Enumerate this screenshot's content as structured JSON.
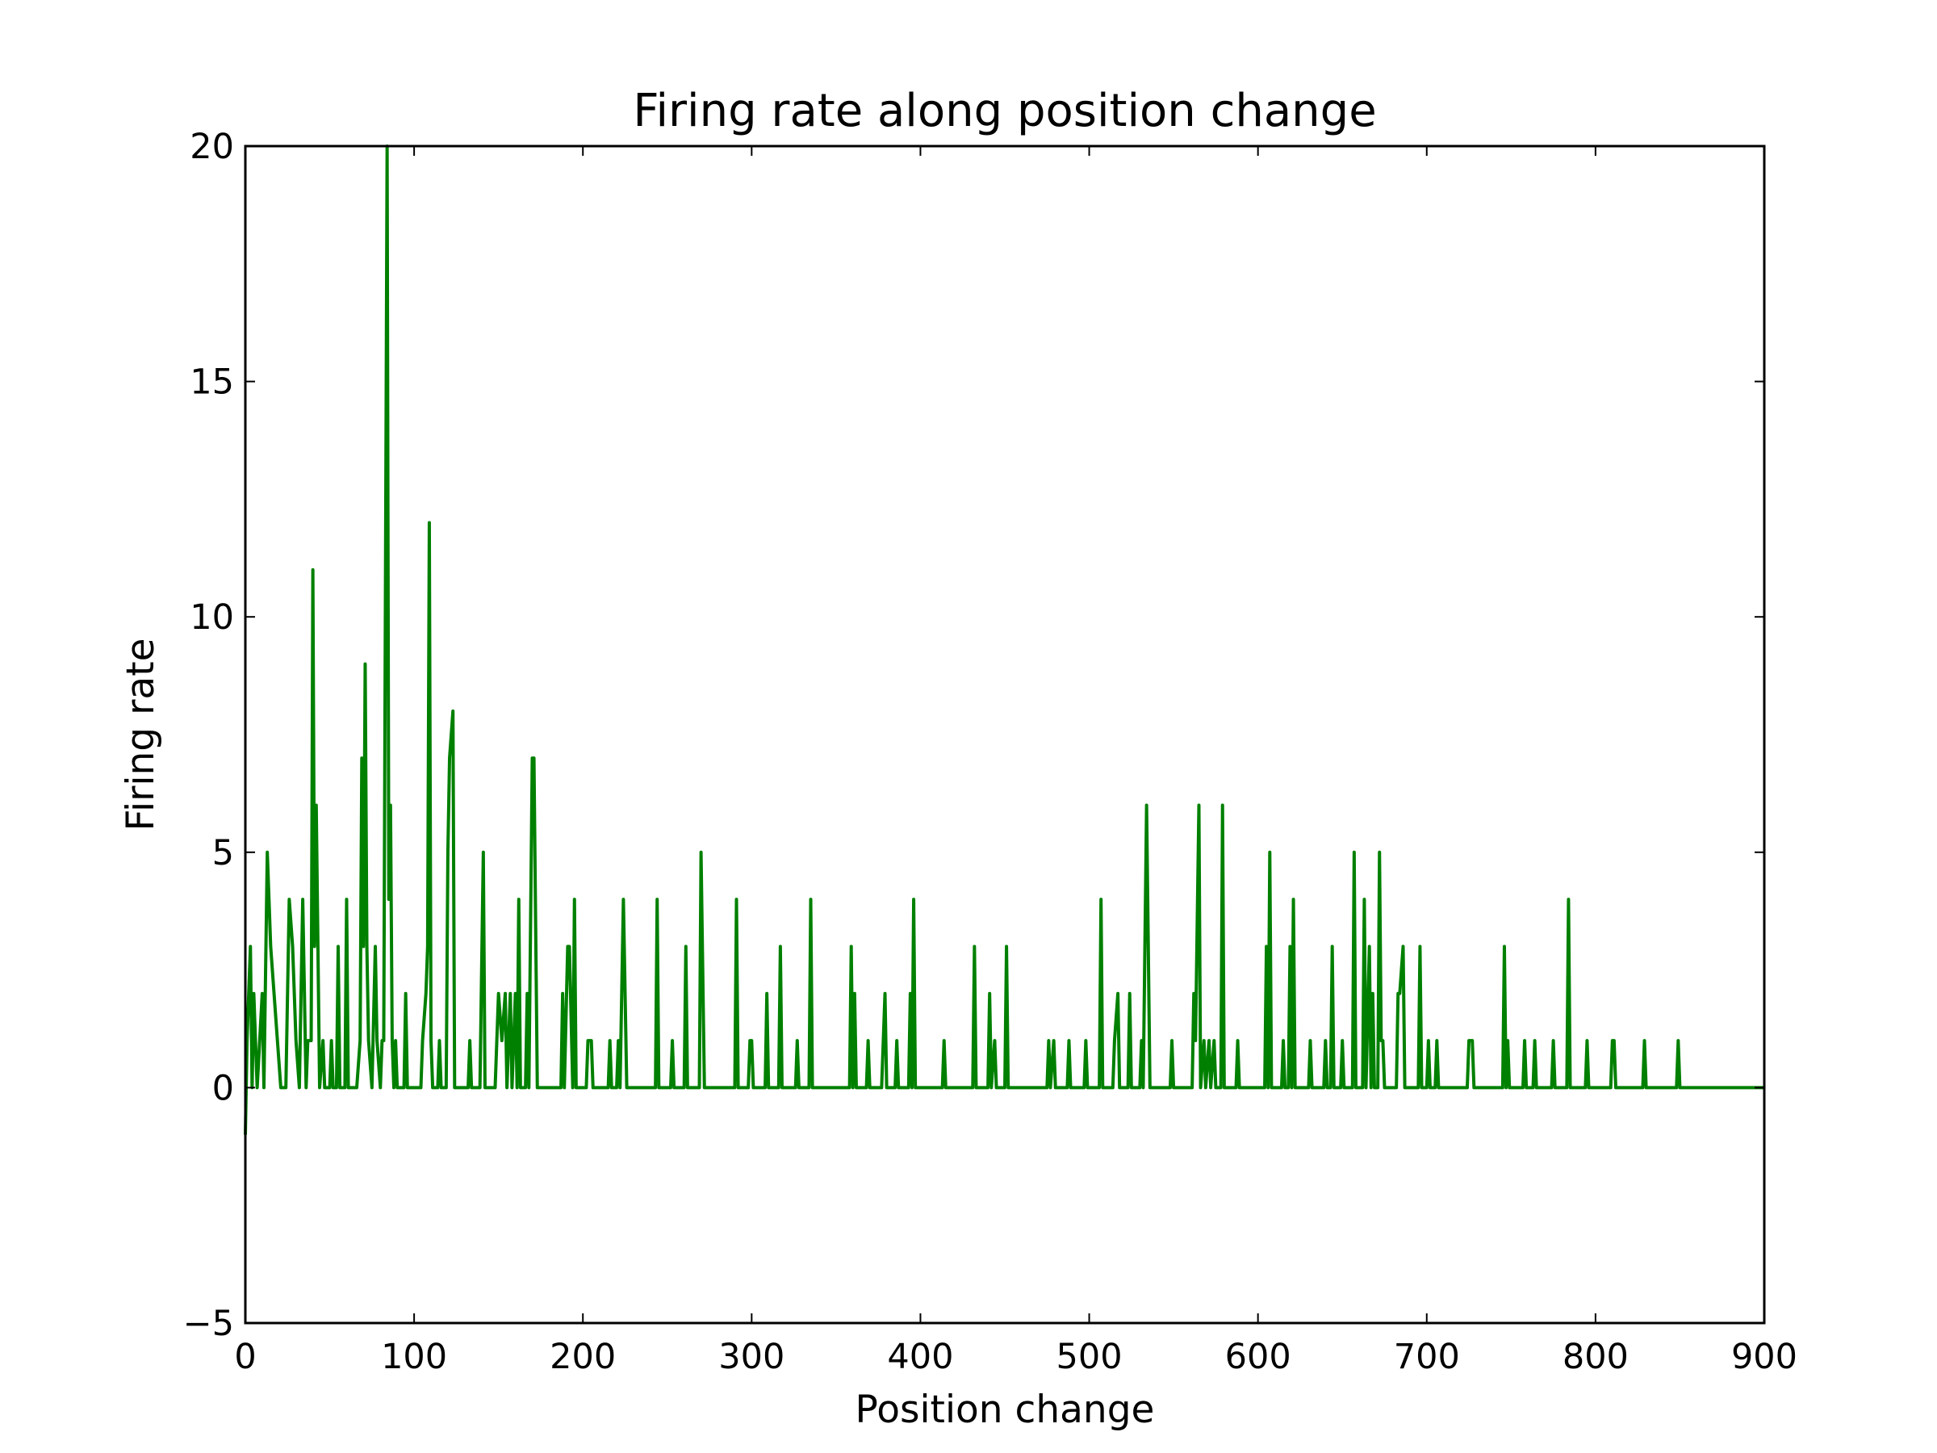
{
  "chart_data": {
    "type": "line",
    "title": "Firing rate along position change",
    "x_label": "Position change",
    "y_label": "Firing rate",
    "color": "#008000",
    "xlim": [
      0,
      900
    ],
    "ylim": [
      -5,
      20
    ],
    "xticks": [
      0,
      100,
      200,
      300,
      400,
      500,
      600,
      700,
      800,
      900
    ],
    "yticks": [
      {
        "value": -5,
        "label": "−5"
      },
      0,
      5,
      10,
      15,
      20
    ],
    "x": [
      0,
      1,
      3,
      4,
      5,
      7,
      10,
      11,
      13,
      15,
      17,
      19,
      21,
      24,
      26,
      28,
      30,
      32,
      34,
      36,
      37,
      39,
      40,
      41,
      42,
      44,
      46,
      47,
      50,
      51,
      52,
      54,
      55,
      56,
      59,
      60,
      61,
      66,
      68,
      69,
      70,
      71,
      72,
      73,
      75,
      77,
      78,
      80,
      81,
      82,
      84,
      85,
      86,
      87,
      88,
      89,
      90,
      94,
      95,
      96,
      104,
      105,
      107,
      108,
      109,
      110,
      111,
      114,
      115,
      116,
      119,
      120,
      121,
      123,
      124,
      132,
      133,
      134,
      139,
      141,
      142,
      148,
      150,
      152,
      154,
      155,
      157,
      158,
      160,
      161,
      162,
      163,
      166,
      167,
      168,
      170,
      171,
      173,
      187,
      188,
      189,
      191,
      192,
      194,
      195,
      196,
      202,
      203,
      205,
      206,
      215,
      216,
      217,
      220,
      221,
      222,
      224,
      226,
      243,
      244,
      245,
      252,
      253,
      254,
      260,
      261,
      262,
      269,
      270,
      272,
      290,
      291,
      292,
      298,
      299,
      300,
      301,
      308,
      309,
      310,
      316,
      317,
      318,
      326,
      327,
      328,
      334,
      335,
      336,
      358,
      359,
      360,
      361,
      362,
      368,
      369,
      370,
      377,
      379,
      380,
      385,
      386,
      387,
      393,
      394,
      395,
      396,
      397,
      413,
      414,
      415,
      431,
      432,
      433,
      440,
      441,
      442,
      444,
      445,
      450,
      451,
      452,
      475,
      476,
      477,
      479,
      480,
      487,
      488,
      489,
      497,
      498,
      499,
      506,
      507,
      508,
      514,
      515,
      517,
      518,
      523,
      524,
      525,
      530,
      531,
      532,
      534,
      536,
      548,
      549,
      550,
      561,
      562,
      563,
      565,
      566,
      568,
      569,
      571,
      572,
      574,
      575,
      578,
      579,
      580,
      587,
      588,
      589,
      604,
      605,
      606,
      607,
      608,
      614,
      615,
      616,
      618,
      619,
      620,
      621,
      622,
      630,
      631,
      632,
      639,
      640,
      641,
      643,
      644,
      645,
      649,
      650,
      651,
      656,
      657,
      658,
      662,
      663,
      664,
      666,
      667,
      668,
      669,
      671,
      672,
      673,
      674,
      675,
      682,
      683,
      684,
      686,
      687,
      695,
      696,
      697,
      700,
      701,
      702,
      705,
      706,
      707,
      724,
      725,
      727,
      728,
      745,
      746,
      747,
      748,
      749,
      757,
      758,
      759,
      763,
      764,
      765,
      774,
      775,
      776,
      783,
      784,
      785,
      794,
      795,
      796,
      809,
      810,
      811,
      812,
      828,
      829,
      830,
      848,
      849,
      850,
      900
    ],
    "values": [
      -1,
      1,
      3,
      0,
      2,
      0,
      2,
      0,
      5,
      3,
      2,
      1,
      0,
      0,
      4,
      3,
      1,
      0,
      4,
      0,
      1,
      1,
      11,
      3,
      6,
      0,
      1,
      0,
      0,
      1,
      0,
      0,
      3,
      0,
      0,
      4,
      0,
      0,
      1,
      7,
      3,
      9,
      3,
      1,
      0,
      3,
      1,
      0,
      1,
      1,
      20,
      4,
      6,
      1,
      0,
      1,
      0,
      0,
      2,
      0,
      0,
      1,
      2,
      3,
      12,
      1,
      0,
      0,
      1,
      0,
      0,
      5,
      7,
      8,
      0,
      0,
      1,
      0,
      0,
      5,
      0,
      0,
      2,
      1,
      2,
      0,
      2,
      0,
      2,
      0,
      4,
      0,
      0,
      2,
      0,
      7,
      7,
      0,
      0,
      2,
      0,
      3,
      3,
      0,
      4,
      0,
      0,
      1,
      1,
      0,
      0,
      1,
      0,
      0,
      1,
      0,
      4,
      0,
      0,
      4,
      0,
      0,
      1,
      0,
      0,
      3,
      0,
      0,
      5,
      0,
      0,
      4,
      0,
      0,
      1,
      1,
      0,
      0,
      2,
      0,
      0,
      3,
      0,
      0,
      1,
      0,
      0,
      4,
      0,
      0,
      3,
      0,
      2,
      0,
      0,
      1,
      0,
      0,
      2,
      0,
      0,
      1,
      0,
      0,
      2,
      0,
      4,
      0,
      0,
      1,
      0,
      0,
      3,
      0,
      0,
      2,
      0,
      1,
      0,
      0,
      3,
      0,
      0,
      1,
      0,
      1,
      0,
      0,
      1,
      0,
      0,
      1,
      0,
      0,
      4,
      0,
      0,
      1,
      2,
      0,
      0,
      2,
      0,
      0,
      1,
      0,
      6,
      0,
      0,
      1,
      0,
      0,
      2,
      1,
      6,
      0,
      1,
      0,
      1,
      0,
      1,
      0,
      0,
      6,
      0,
      0,
      1,
      0,
      0,
      3,
      0,
      5,
      0,
      0,
      1,
      0,
      0,
      3,
      0,
      4,
      0,
      0,
      1,
      0,
      0,
      1,
      0,
      0,
      3,
      0,
      0,
      1,
      0,
      0,
      5,
      0,
      0,
      4,
      0,
      3,
      0,
      2,
      0,
      0,
      5,
      1,
      1,
      0,
      0,
      2,
      2,
      3,
      0,
      0,
      3,
      0,
      0,
      1,
      0,
      0,
      1,
      0,
      0,
      1,
      1,
      0,
      0,
      3,
      0,
      1,
      0,
      0,
      1,
      0,
      0,
      1,
      0,
      0,
      1,
      0,
      0,
      4,
      0,
      0,
      1,
      0,
      0,
      1,
      1,
      0,
      0,
      1,
      0,
      0,
      1,
      0,
      0
    ]
  }
}
